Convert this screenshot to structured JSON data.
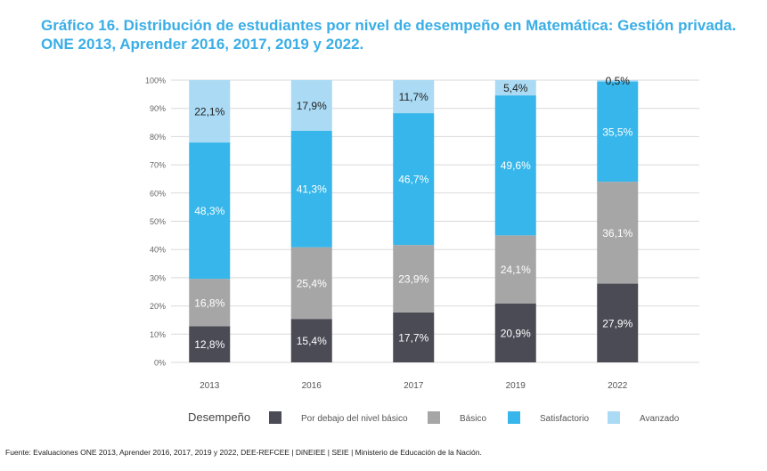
{
  "title": {
    "lead": "Gráfico 16.",
    "text": "Distribución de estudiantes por nivel de desempeño en Matemática: Gestión privada. ONE 2013, Aprender 2016, 2017, 2019 y 2022."
  },
  "source": "Fuente: Evaluaciones ONE 2013, Aprender 2016, 2017, 2019 y 2022, DEE-REFCEE | DiNEIEE | SEIE | Ministerio de Educación de la Nación.",
  "chart_data": {
    "type": "bar",
    "stacked": true,
    "categories": [
      "2013",
      "2016",
      "2017",
      "2019",
      "2022"
    ],
    "ylim": [
      0,
      100
    ],
    "yticks": [
      "0%",
      "10%",
      "20%",
      "30%",
      "40%",
      "50%",
      "60%",
      "70%",
      "80%",
      "90%",
      "100%"
    ],
    "grid": true,
    "legend_title": "Desempeño",
    "legend_position": "bottom",
    "series": [
      {
        "name": "Por debajo del nivel básico",
        "color": "#4a4b55",
        "values": [
          12.8,
          15.4,
          17.7,
          20.9,
          27.9
        ],
        "labels": [
          "12,8%",
          "15,4%",
          "17,7%",
          "20,9%",
          "27,9%"
        ],
        "label_color": "#ffffff"
      },
      {
        "name": "Básico",
        "color": "#a6a6a6",
        "values": [
          16.8,
          25.4,
          23.9,
          24.1,
          36.1
        ],
        "labels": [
          "16,8%",
          "25,4%",
          "23,9%",
          "24,1%",
          "36,1%"
        ],
        "label_color": "#ffffff"
      },
      {
        "name": "Satisfactorio",
        "color": "#36b6ea",
        "values": [
          48.3,
          41.3,
          46.7,
          49.6,
          35.5
        ],
        "labels": [
          "48,3%",
          "41,3%",
          "46,7%",
          "49,6%",
          "35,5%"
        ],
        "label_color": "#ffffff"
      },
      {
        "name": "Avanzado",
        "color": "#aadaf4",
        "values": [
          22.1,
          17.9,
          11.7,
          5.4,
          0.5
        ],
        "labels": [
          "22,1%",
          "17,9%",
          "11,7%",
          "5,4%",
          "0,5%"
        ],
        "label_color": "#222222"
      }
    ]
  }
}
